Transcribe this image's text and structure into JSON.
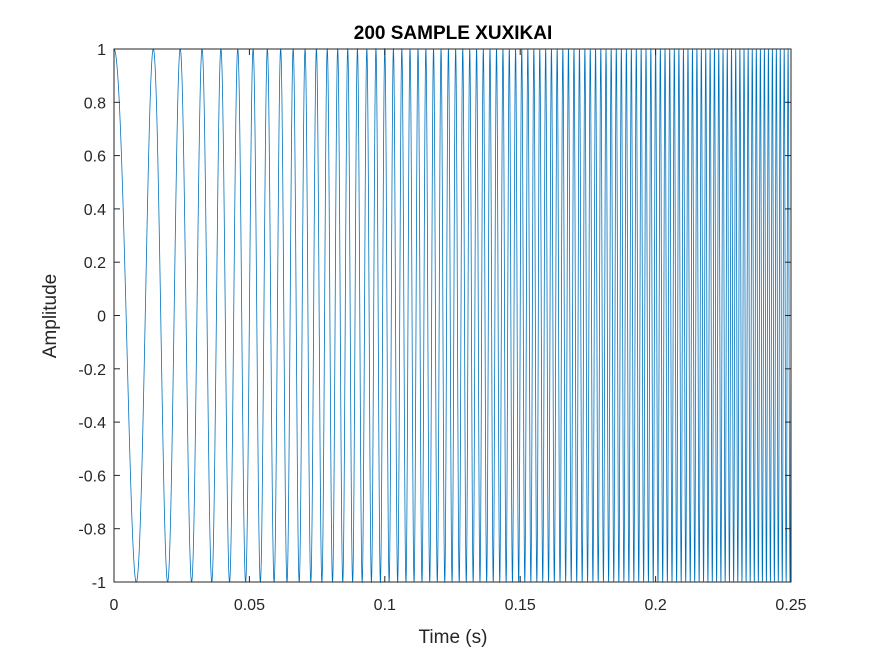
{
  "chart_data": {
    "type": "line",
    "title": "200 SAMPLE XUXIKAI",
    "xlabel": "Time (s)",
    "ylabel": "Amplitude",
    "xlim": [
      0,
      0.25
    ],
    "ylim": [
      -1,
      1
    ],
    "x_ticks": [
      0,
      0.05,
      0.1,
      0.15,
      0.2,
      0.25
    ],
    "x_tick_labels": [
      "0",
      "0.05",
      "0.1",
      "0.15",
      "0.2",
      "0.25"
    ],
    "y_ticks": [
      -1,
      -0.8,
      -0.6,
      -0.4,
      -0.2,
      0,
      0.2,
      0.4,
      0.6,
      0.8,
      1
    ],
    "y_tick_labels": [
      "-1",
      "-0.8",
      "-0.6",
      "-0.4",
      "-0.2",
      "0",
      "0.2",
      "0.4",
      "0.6",
      "0.8",
      "1"
    ],
    "grid": false,
    "series": [
      {
        "signal": "chirp",
        "function": "cos",
        "start_frequency_hz": 50,
        "end_frequency_hz": 700,
        "duration_s": 0.25,
        "color": "#0072BD"
      }
    ]
  }
}
